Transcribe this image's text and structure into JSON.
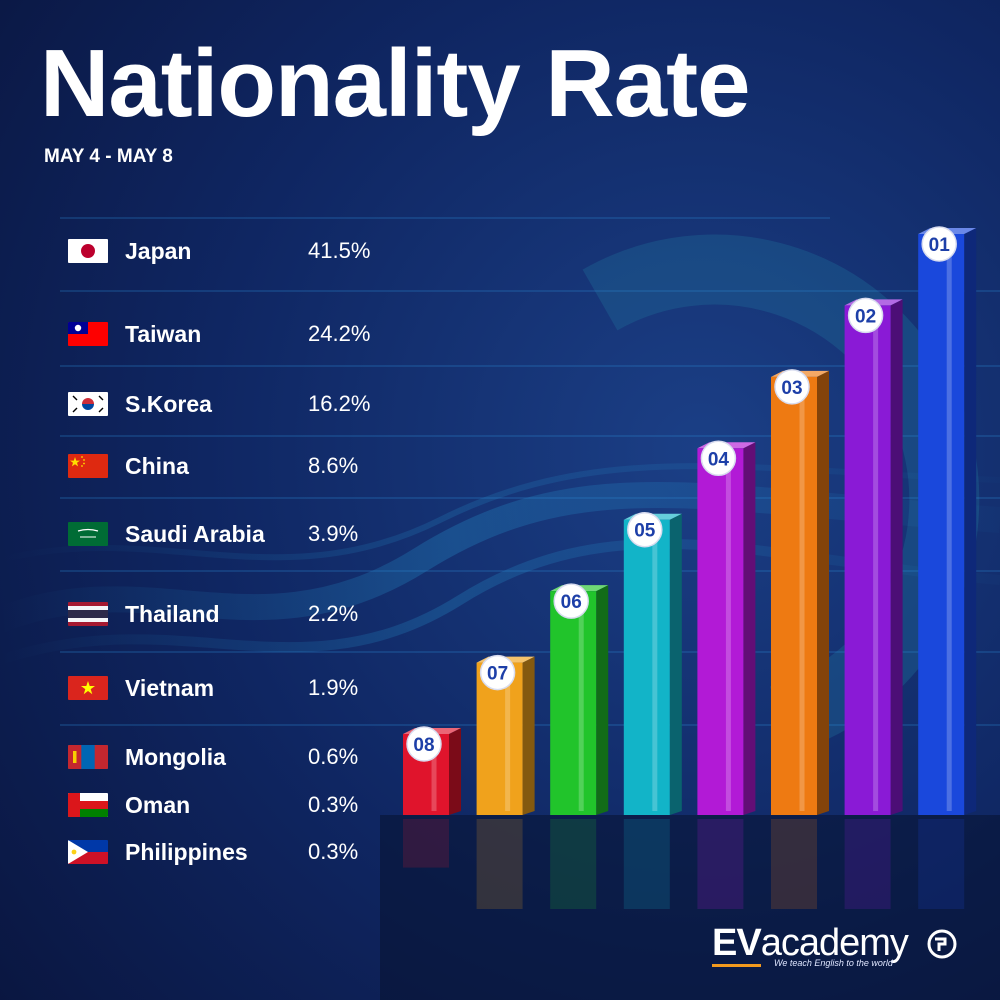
{
  "title": "Nationality Rate",
  "subtitle": "MAY 4 - MAY 8",
  "rows": [
    {
      "country": "Japan",
      "percent": "41.5%",
      "flag": "japan-flag"
    },
    {
      "country": "Taiwan",
      "percent": "24.2%",
      "flag": "taiwan-flag"
    },
    {
      "country": "S.Korea",
      "percent": "16.2%",
      "flag": "south-korea-flag"
    },
    {
      "country": "China",
      "percent": "8.6%",
      "flag": "china-flag"
    },
    {
      "country": "Saudi Arabia",
      "percent": "3.9%",
      "flag": "saudi-arabia-flag"
    },
    {
      "country": "Thailand",
      "percent": "2.2%",
      "flag": "thailand-flag"
    },
    {
      "country": "Vietnam",
      "percent": "1.9%",
      "flag": "vietnam-flag"
    },
    {
      "country": "Mongolia",
      "percent": "0.6%",
      "flag": "mongolia-flag"
    },
    {
      "country": "Oman",
      "percent": "0.3%",
      "flag": "oman-flag"
    },
    {
      "country": "Philippines",
      "percent": "0.3%",
      "flag": "philippines-flag"
    }
  ],
  "chart_data": {
    "type": "bar",
    "categories": [
      "08",
      "07",
      "06",
      "05",
      "04",
      "03",
      "02",
      "01"
    ],
    "values": [
      1,
      2,
      3,
      4,
      5,
      6,
      7,
      8
    ],
    "colors": [
      "#e0142c",
      "#f0a21c",
      "#21c42b",
      "#12b4c8",
      "#b21ad6",
      "#ee7a12",
      "#8a1ad6",
      "#1a48dc"
    ],
    "grid": false,
    "legend": "none"
  },
  "logo": {
    "ev": "EV",
    "academy": "academy",
    "tagline": "We teach English to the world",
    "accent": "#f39a1e"
  },
  "theme": {
    "background": "#0b1a4a",
    "accent": "#1a8fd6"
  }
}
